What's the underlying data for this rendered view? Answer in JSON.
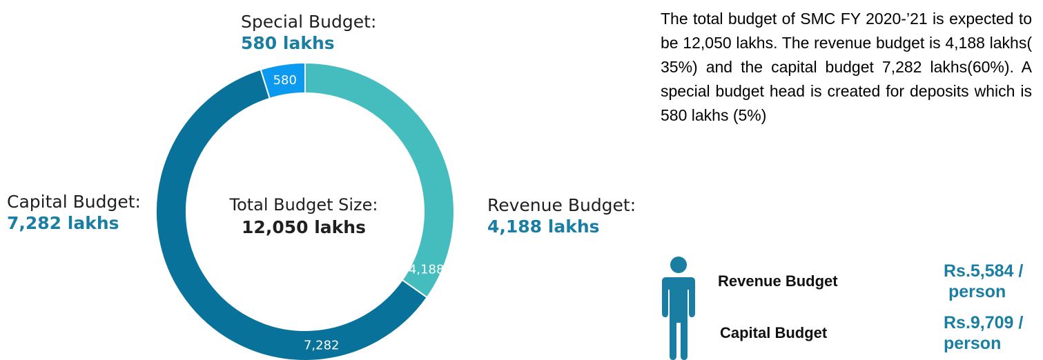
{
  "chart_data": {
    "type": "pie",
    "variant": "donut",
    "categories": [
      "Revenue Budget",
      "Capital Budget",
      "Special Budget"
    ],
    "values": [
      4188,
      7282,
      580
    ],
    "value_labels": [
      "4,188",
      "7,282",
      "580"
    ],
    "colors": [
      "#45bdbf",
      "#08729a",
      "#0b9af0"
    ],
    "center": {
      "title": "Total Budget Size:",
      "value": "12,050 lakhs"
    },
    "callouts": {
      "special": {
        "title": "Special Budget:",
        "value": "580 lakhs"
      },
      "capital": {
        "title": "Capital Budget:",
        "value": "7,282 lakhs"
      },
      "revenue": {
        "title": "Revenue Budget:",
        "value": "4,188 lakhs"
      }
    }
  },
  "description": "The total budget of SMC FY 2020-’21 is expected to be 12,050 lakhs. The revenue budget is 4,188 lakhs( 35%) and the capital budget  7,282 lakhs(60%). A special budget head is created for deposits which is 580 lakhs (5%)",
  "per_capita": {
    "icon": "person-icon",
    "icon_color": "#1a7ea3",
    "rows": [
      {
        "label": "Revenue Budget",
        "value_line1": "Rs.5,584 /",
        "value_line2": " person"
      },
      {
        "label": "Capital Budget",
        "value_line1": "Rs.9,709 /",
        "value_line2": "person"
      }
    ]
  },
  "colors": {
    "accent": "#1a7ea3"
  }
}
